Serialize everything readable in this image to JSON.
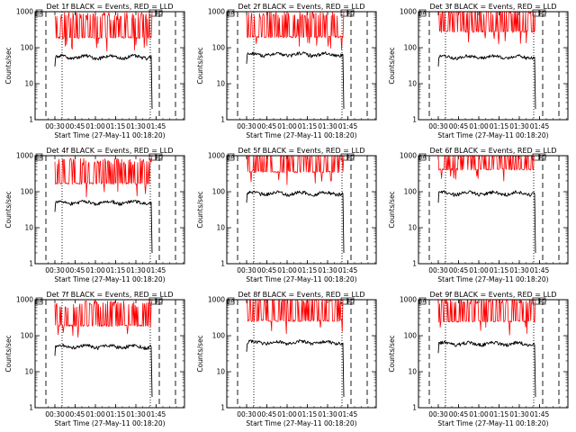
{
  "chart_data": [
    {
      "type": "line",
      "title": "Det 1f BLACK = Events, RED = LLD",
      "xlabel": "Start Time (27-May-11 00:18:20)",
      "ylabel": "Counts/sec",
      "y_scale": "log",
      "ylim": [
        1,
        1000
      ],
      "x_ticks": [
        "00:30",
        "00:45",
        "01:00",
        "01:15",
        "01:30",
        "01:45"
      ],
      "y_ticks": [
        "1",
        "10",
        "100",
        "1000"
      ],
      "box_labels": [
        "SA",
        "SD"
      ],
      "series": [
        {
          "color": "#ff0000",
          "level": 190
        },
        {
          "color": "#000000",
          "level": 55
        }
      ]
    },
    {
      "type": "line",
      "title": "Det 2f BLACK = Events, RED = LLD",
      "xlabel": "Start Time (27-May-11 00:18:20)",
      "ylabel": "Counts/sec",
      "y_scale": "log",
      "ylim": [
        1,
        1000
      ],
      "x_ticks": [
        "00:30",
        "00:45",
        "01:00",
        "01:15",
        "01:30",
        "01:45"
      ],
      "y_ticks": [
        "1",
        "10",
        "100",
        "1000"
      ],
      "box_labels": [
        "SA",
        "SD"
      ],
      "series": [
        {
          "color": "#ff0000",
          "level": 200
        },
        {
          "color": "#000000",
          "level": 65
        }
      ]
    },
    {
      "type": "line",
      "title": "Det 3f BLACK = Events, RED = LLD",
      "xlabel": "Start Time (27-May-11 00:18:20)",
      "ylabel": "Counts/sec",
      "y_scale": "log",
      "ylim": [
        1,
        1000
      ],
      "x_ticks": [
        "00:30",
        "00:45",
        "01:00",
        "01:15",
        "01:30",
        "01:45"
      ],
      "y_ticks": [
        "1",
        "10",
        "100",
        "1000"
      ],
      "box_labels": [
        "SA",
        "SD"
      ],
      "series": [
        {
          "color": "#ff0000",
          "level": 280
        },
        {
          "color": "#000000",
          "level": 55
        }
      ]
    },
    {
      "type": "line",
      "title": "Det 4f BLACK = Events, RED = LLD",
      "xlabel": "Start Time (27-May-11 00:18:20)",
      "ylabel": "Counts/sec",
      "y_scale": "log",
      "ylim": [
        1,
        1000
      ],
      "x_ticks": [
        "00:30",
        "00:45",
        "01:00",
        "01:15",
        "01:30",
        "01:45"
      ],
      "y_ticks": [
        "1",
        "10",
        "100",
        "1000"
      ],
      "box_labels": [
        "SA",
        "SD"
      ],
      "series": [
        {
          "color": "#ff0000",
          "level": 170
        },
        {
          "color": "#000000",
          "level": 50
        }
      ]
    },
    {
      "type": "line",
      "title": "Det 5f BLACK = Events, RED = LLD",
      "xlabel": "Start Time (27-May-11 00:18:20)",
      "ylabel": "Counts/sec",
      "y_scale": "log",
      "ylim": [
        1,
        1000
      ],
      "x_ticks": [
        "00:30",
        "00:45",
        "01:00",
        "01:15",
        "01:30",
        "01:45"
      ],
      "y_ticks": [
        "1",
        "10",
        "100",
        "1000"
      ],
      "box_labels": [
        "SA",
        "SD"
      ],
      "series": [
        {
          "color": "#ff0000",
          "level": 360
        },
        {
          "color": "#000000",
          "level": 90
        }
      ]
    },
    {
      "type": "line",
      "title": "Det 6f BLACK = Events, RED = LLD",
      "xlabel": "Start Time (27-May-11 00:18:20)",
      "ylabel": "Counts/sec",
      "y_scale": "log",
      "ylim": [
        1,
        1000
      ],
      "x_ticks": [
        "00:30",
        "00:45",
        "01:00",
        "01:15",
        "01:30",
        "01:45"
      ],
      "y_ticks": [
        "1",
        "10",
        "100",
        "1000"
      ],
      "box_labels": [
        "SA",
        "SD"
      ],
      "series": [
        {
          "color": "#ff0000",
          "level": 420
        },
        {
          "color": "#000000",
          "level": 90
        }
      ]
    },
    {
      "type": "line",
      "title": "Det 7f BLACK = Events, RED = LLD",
      "xlabel": "Start Time (27-May-11 00:18:20)",
      "ylabel": "Counts/sec",
      "y_scale": "log",
      "ylim": [
        1,
        1000
      ],
      "x_ticks": [
        "00:30",
        "00:45",
        "01:00",
        "01:15",
        "01:30",
        "01:45"
      ],
      "y_ticks": [
        "1",
        "10",
        "100",
        "1000"
      ],
      "box_labels": [
        "SA",
        "SD"
      ],
      "series": [
        {
          "color": "#ff0000",
          "level": 190
        },
        {
          "color": "#000000",
          "level": 50
        }
      ]
    },
    {
      "type": "line",
      "title": "Det 8f BLACK = Events, RED = LLD",
      "xlabel": "Start Time (27-May-11 00:18:20)",
      "ylabel": "Counts/sec",
      "y_scale": "log",
      "ylim": [
        1,
        1000
      ],
      "x_ticks": [
        "00:30",
        "00:45",
        "01:00",
        "01:15",
        "01:30",
        "01:45"
      ],
      "y_ticks": [
        "1",
        "10",
        "100",
        "1000"
      ],
      "box_labels": [
        "SA",
        "SD"
      ],
      "series": [
        {
          "color": "#ff0000",
          "level": 260
        },
        {
          "color": "#000000",
          "level": 65
        }
      ]
    },
    {
      "type": "line",
      "title": "Det 9f BLACK = Events, RED = LLD",
      "xlabel": "Start Time (27-May-11 00:18:20)",
      "ylabel": "Counts/sec",
      "y_scale": "log",
      "ylim": [
        1,
        1000
      ],
      "x_ticks": [
        "00:30",
        "00:45",
        "01:00",
        "01:15",
        "01:30",
        "01:45"
      ],
      "y_ticks": [
        "1",
        "10",
        "100",
        "1000"
      ],
      "box_labels": [
        "SA",
        "SD"
      ],
      "series": [
        {
          "color": "#ff0000",
          "level": 250
        },
        {
          "color": "#000000",
          "level": 60
        }
      ]
    }
  ]
}
